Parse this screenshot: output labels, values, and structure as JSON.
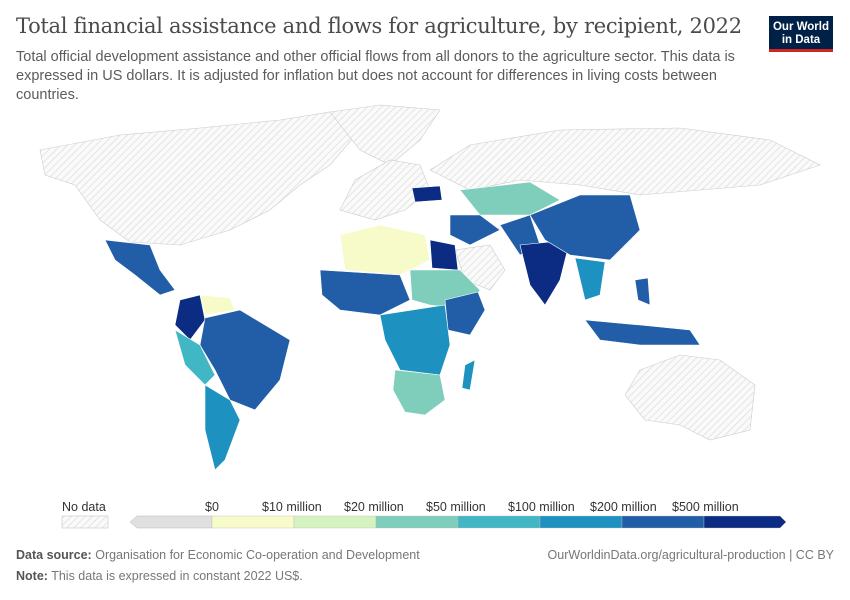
{
  "header": {
    "title": "Total financial assistance and flows for agriculture, by recipient, 2022",
    "subtitle": "Total official development assistance and other official flows from all donors to the agriculture sector. This data is expressed in US dollars. It is adjusted for inflation but does not account for differences in living costs between countries.",
    "logo": "Our World in Data"
  },
  "legend": {
    "no_data_label": "No data",
    "bins": [
      {
        "label": "$0",
        "color": "#f7fbc9"
      },
      {
        "label": "$10 million",
        "color": "#d4f3c0"
      },
      {
        "label": "$20 million",
        "color": "#7fcdbb"
      },
      {
        "label": "$50 million",
        "color": "#41b6c4"
      },
      {
        "label": "$100 million",
        "color": "#1d91c0"
      },
      {
        "label": "$200 million",
        "color": "#225ea8"
      },
      {
        "label": "$500 million",
        "color": "#0c2c84"
      }
    ],
    "below_zero_color": "#e0e0e0"
  },
  "footer": {
    "source_label": "Data source:",
    "source": "Organisation for Economic Co-operation and Development",
    "note_label": "Note:",
    "note": "This data is expressed in constant 2022 US$.",
    "url": "OurWorldinData.org/agricultural-production | CC BY"
  }
}
